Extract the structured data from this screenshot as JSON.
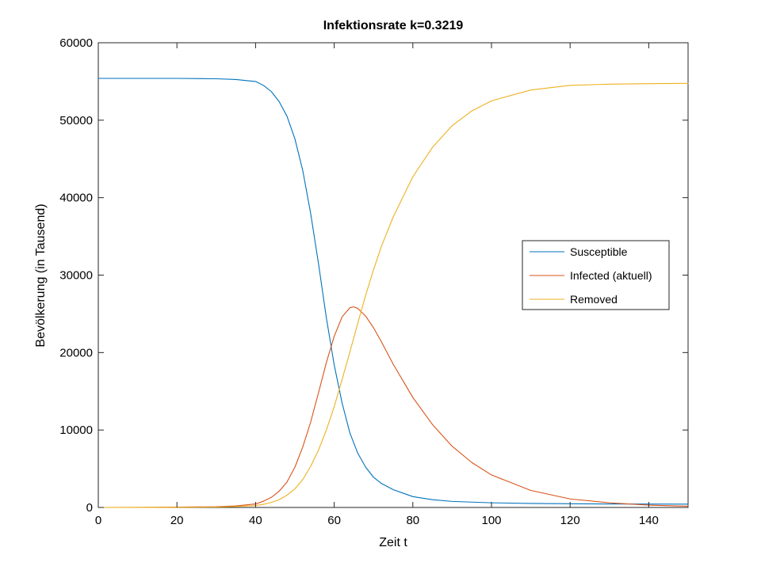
{
  "chart_data": {
    "type": "line",
    "title": "Infektionsrate k=0.3219",
    "xlabel": "Zeit t",
    "ylabel": "Bevölkerung (in Tausend)",
    "xlim": [
      0,
      150
    ],
    "ylim": [
      0,
      60000
    ],
    "xticks": [
      0,
      20,
      40,
      60,
      80,
      100,
      120,
      140
    ],
    "yticks": [
      0,
      10000,
      20000,
      30000,
      40000,
      50000,
      60000
    ],
    "grid": false,
    "legend_position": "center-right",
    "series": [
      {
        "name": "Susceptible",
        "color": "#0072BD",
        "x": [
          0,
          10,
          20,
          30,
          35,
          40,
          42,
          44,
          46,
          48,
          50,
          52,
          54,
          56,
          58,
          60,
          62,
          64,
          66,
          68,
          70,
          72,
          75,
          80,
          85,
          90,
          100,
          110,
          120,
          130,
          140,
          150
        ],
        "y": [
          55400,
          55400,
          55400,
          55350,
          55250,
          55000,
          54500,
          53700,
          52400,
          50500,
          47600,
          43500,
          38000,
          31500,
          24500,
          18400,
          13500,
          9600,
          7000,
          5200,
          3900,
          3100,
          2300,
          1400,
          1000,
          780,
          600,
          520,
          480,
          450,
          440,
          430
        ]
      },
      {
        "name": "Infected (aktuell)",
        "color": "#D95319",
        "x": [
          0,
          10,
          20,
          30,
          35,
          40,
          42,
          44,
          46,
          48,
          50,
          52,
          54,
          56,
          58,
          60,
          62,
          64,
          65,
          66,
          68,
          70,
          72,
          75,
          80,
          85,
          90,
          95,
          100,
          110,
          120,
          130,
          140,
          150
        ],
        "y": [
          0,
          10,
          40,
          100,
          200,
          450,
          800,
          1300,
          2100,
          3300,
          5200,
          7800,
          11000,
          14800,
          18700,
          22100,
          24600,
          25800,
          25900,
          25700,
          24700,
          23200,
          21400,
          18500,
          14200,
          10700,
          7900,
          5800,
          4200,
          2200,
          1100,
          600,
          300,
          160
        ]
      },
      {
        "name": "Removed",
        "color": "#EDB120",
        "x": [
          0,
          10,
          20,
          30,
          35,
          40,
          42,
          44,
          46,
          48,
          50,
          52,
          54,
          56,
          58,
          60,
          62,
          64,
          66,
          68,
          70,
          72,
          75,
          80,
          85,
          90,
          95,
          100,
          110,
          120,
          130,
          140,
          150
        ],
        "y": [
          0,
          5,
          20,
          50,
          120,
          250,
          400,
          650,
          1000,
          1600,
          2400,
          3600,
          5300,
          7400,
          10000,
          13000,
          16500,
          20100,
          23800,
          27400,
          30700,
          33700,
          37500,
          42700,
          46500,
          49300,
          51200,
          52500,
          53900,
          54500,
          54650,
          54720,
          54750
        ]
      }
    ]
  }
}
